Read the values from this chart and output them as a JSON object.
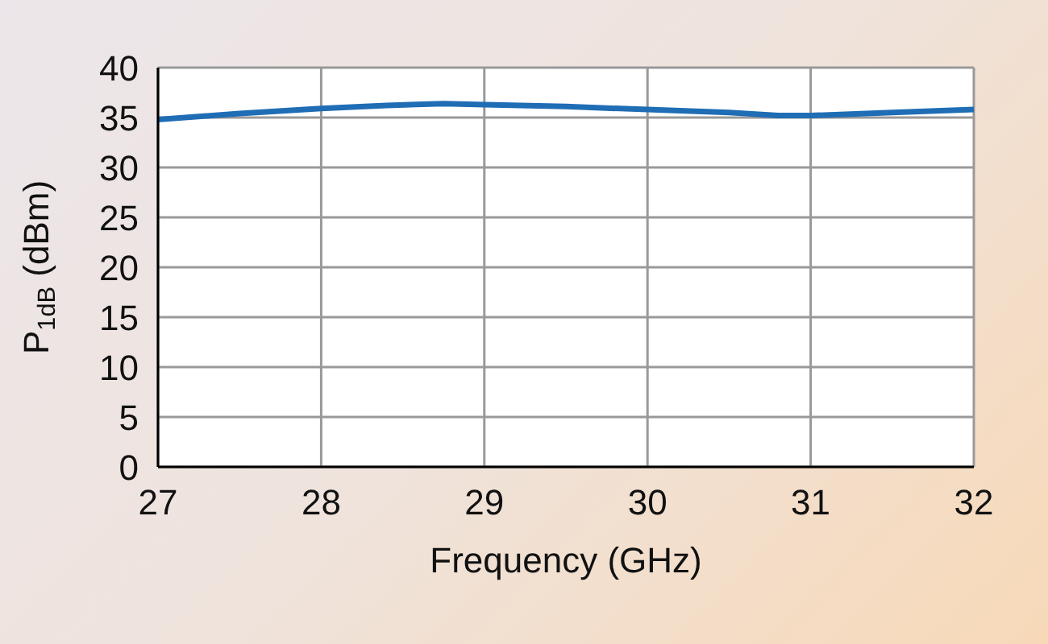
{
  "chart_data": {
    "type": "line",
    "xlabel": "Frequency (GHz)",
    "ylabel": "P$_{1dB}$ (dBm)",
    "x": [
      27,
      27.5,
      28,
      28.4,
      28.75,
      29,
      29.5,
      30,
      30.5,
      30.8,
      31,
      31.5,
      32
    ],
    "series": [
      {
        "color": "#1f6db5",
        "values": [
          34.8,
          35.4,
          35.9,
          36.2,
          36.4,
          36.3,
          36.1,
          35.8,
          35.5,
          35.2,
          35.2,
          35.5,
          35.8
        ]
      }
    ],
    "xlim": [
      27,
      32
    ],
    "xticks": [
      27,
      28,
      29,
      30,
      31,
      32
    ],
    "ylim": [
      0,
      40
    ],
    "yticks": [
      0,
      5,
      10,
      15,
      20,
      25,
      30,
      35,
      40
    ],
    "grid": true,
    "legend": false,
    "marker": "none",
    "line_style": "solid"
  }
}
